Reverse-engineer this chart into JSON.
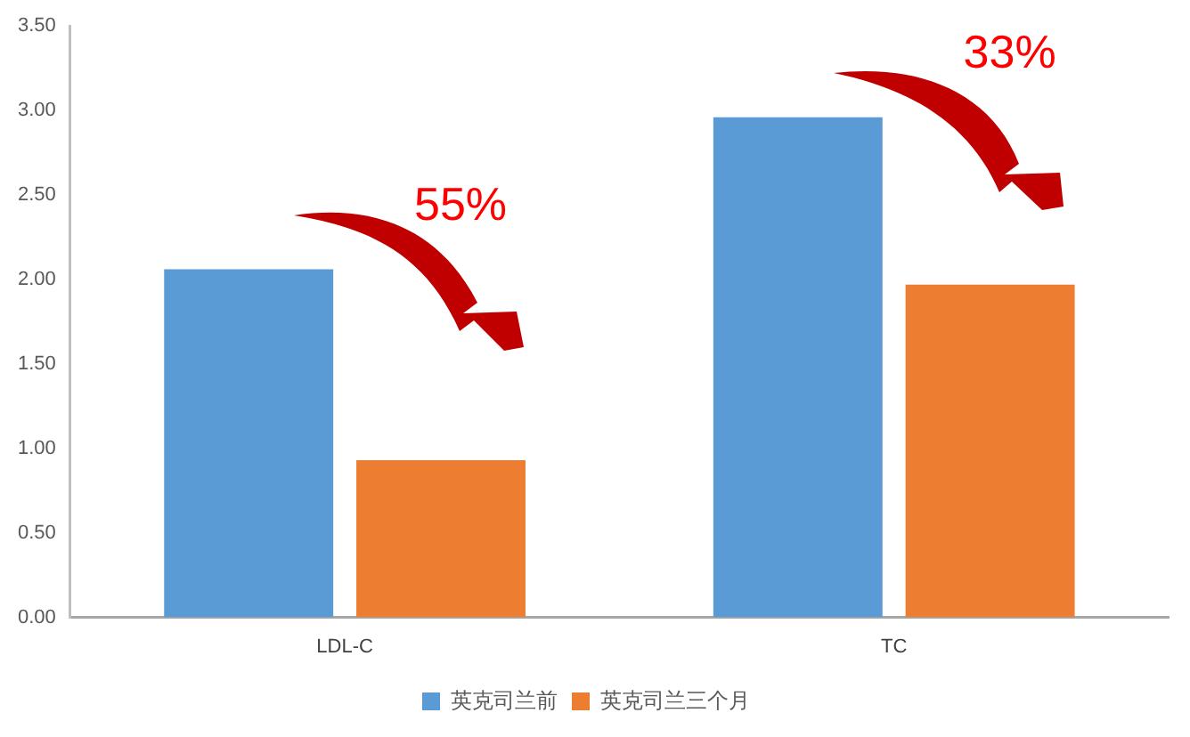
{
  "chart_data": {
    "type": "bar",
    "categories": [
      "LDL-C",
      "TC"
    ],
    "series": [
      {
        "name": "英克司兰前",
        "color": "#5b9bd5",
        "values": [
          2.06,
          2.96
        ]
      },
      {
        "name": "英克司兰三个月",
        "color": "#ed7d31",
        "values": [
          0.93,
          1.97
        ]
      }
    ],
    "ylim": [
      0,
      3.5
    ],
    "yticks": [
      {
        "value": 0,
        "label": "0.00"
      },
      {
        "value": 0.5,
        "label": "0.50"
      },
      {
        "value": 1,
        "label": "1.00"
      },
      {
        "value": 1.5,
        "label": "1.50"
      },
      {
        "value": 2,
        "label": "2.00"
      },
      {
        "value": 2.5,
        "label": "2.50"
      },
      {
        "value": 3,
        "label": "3.00"
      },
      {
        "value": 3.5,
        "label": "3.50"
      }
    ],
    "grid": false,
    "legend": "bottom",
    "annotations": [
      "55%",
      "33%"
    ]
  }
}
